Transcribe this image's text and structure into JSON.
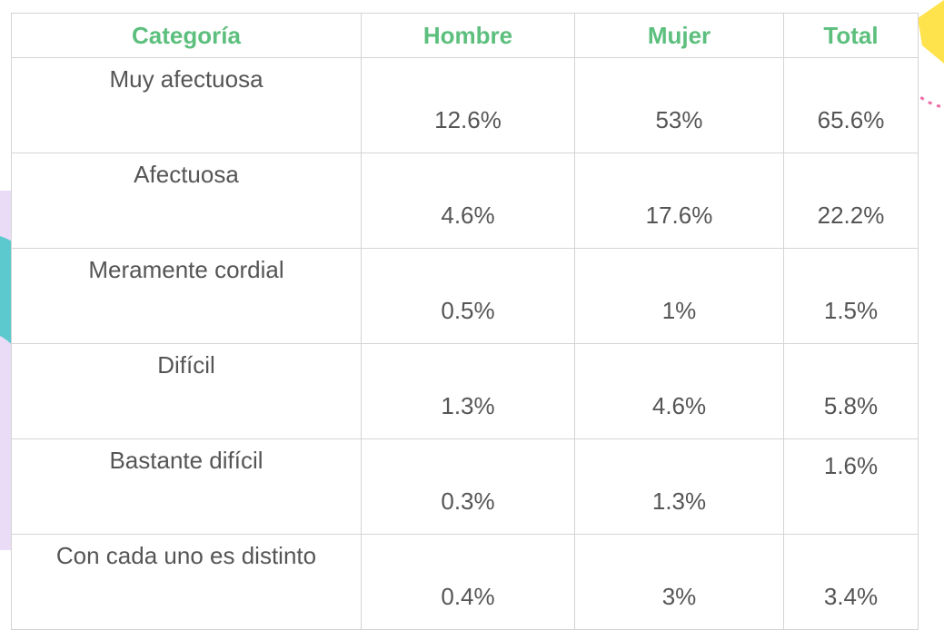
{
  "table": {
    "headers": [
      "Categoría",
      "Hombre",
      "Mujer",
      "Total"
    ],
    "rows": [
      [
        "Muy afectuosa",
        "12.6%",
        "53%",
        "65.6%"
      ],
      [
        "Afectuosa",
        "4.6%",
        "17.6%",
        "22.2%"
      ],
      [
        "Meramente cordial",
        "0.5%",
        "1%",
        "1.5%"
      ],
      [
        "Difícil",
        "1.3%",
        "4.6%",
        "5.8%"
      ],
      [
        "Bastante difícil",
        "0.3%",
        "1.3%",
        "1.6%"
      ],
      [
        "Con cada uno es distinto",
        "0.4%",
        "3%",
        "3.4%"
      ]
    ]
  }
}
